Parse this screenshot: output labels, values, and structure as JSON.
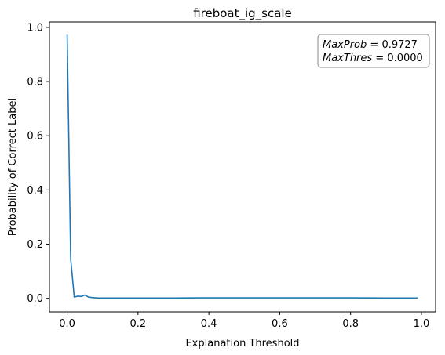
{
  "chart_data": {
    "type": "line",
    "title": "fireboat_ig_scale",
    "xlabel": "Explanation Threshold",
    "ylabel": "Probability of Correct Label",
    "xlim": [
      -0.05,
      1.04
    ],
    "ylim": [
      -0.05,
      1.02
    ],
    "xticks": [
      0.0,
      0.2,
      0.4,
      0.6,
      0.8,
      1.0
    ],
    "yticks": [
      0.0,
      0.2,
      0.4,
      0.6,
      0.8,
      1.0
    ],
    "xtick_labels": [
      "0.0",
      "0.2",
      "0.4",
      "0.6",
      "0.8",
      "1.0"
    ],
    "ytick_labels": [
      "0.0",
      "0.2",
      "0.4",
      "0.6",
      "0.8",
      "1.0"
    ],
    "grid": false,
    "line_color": "#1f77b4",
    "series": [
      {
        "x": [
          0.0,
          0.01,
          0.02,
          0.03,
          0.04,
          0.05,
          0.06,
          0.07,
          0.08,
          0.09,
          0.1,
          0.15,
          0.2,
          0.3,
          0.4,
          0.5,
          0.6,
          0.7,
          0.8,
          0.9,
          0.99
        ],
        "values": [
          0.9727,
          0.145,
          0.005,
          0.008,
          0.007,
          0.012,
          0.005,
          0.003,
          0.002,
          0.001,
          0.001,
          0.001,
          0.001,
          0.001,
          0.002,
          0.002,
          0.002,
          0.002,
          0.002,
          0.001,
          0.001
        ]
      }
    ],
    "annotation": {
      "line1_label": "MaxProb",
      "line1_value": "0.9727",
      "line2_label": "MaxThres",
      "line2_value": "0.0000"
    }
  }
}
